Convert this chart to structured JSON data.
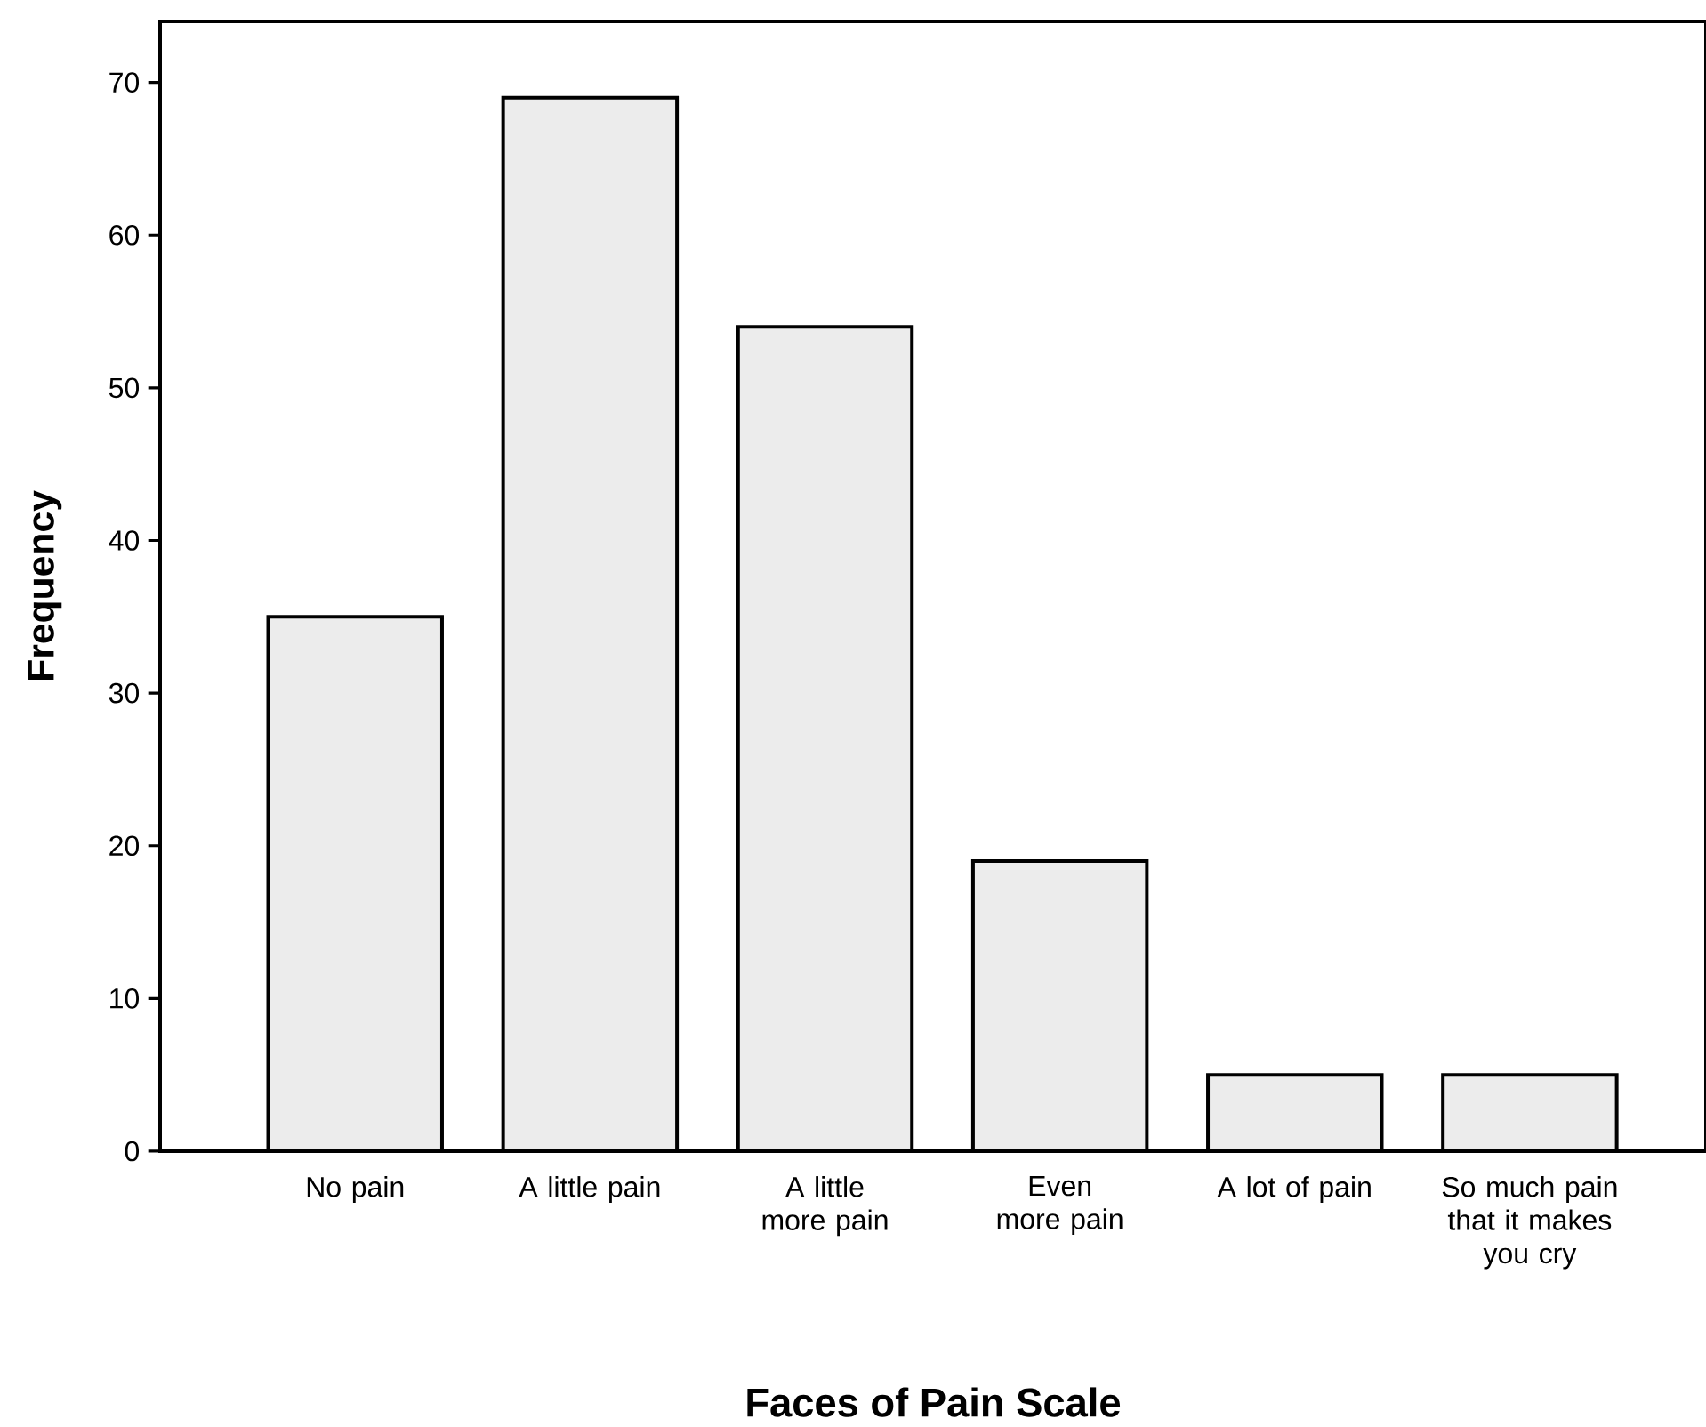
{
  "chart_data": {
    "type": "bar",
    "xlabel": "Faces of Pain Scale",
    "ylabel": "Frequency",
    "categories": [
      "No pain",
      "A little pain",
      "A little more pain",
      "Even more pain",
      "A lot of pain",
      "So much pain that it makes you cry"
    ],
    "values": [
      35,
      69,
      54,
      19,
      5,
      5
    ],
    "color": "#ececec",
    "ylim": [
      0,
      74
    ],
    "yticks": [
      0,
      10,
      20,
      30,
      40,
      50,
      60,
      70
    ],
    "grid": false
  }
}
